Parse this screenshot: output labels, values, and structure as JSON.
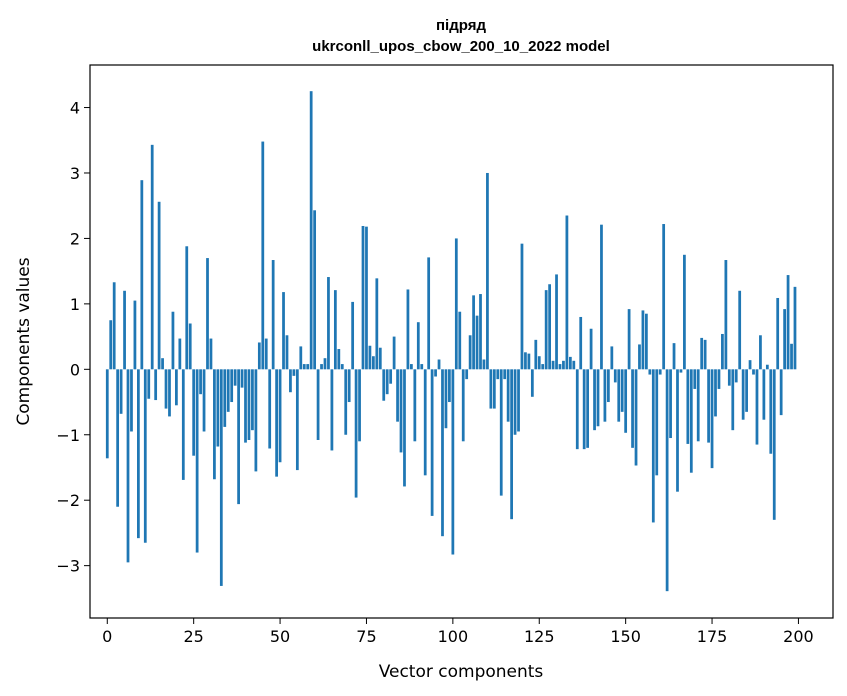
{
  "chart_data": {
    "type": "bar",
    "title": "підряд",
    "subtitle": "ukrconll_upos_cbow_200_10_2022 model",
    "xlabel": "Vector components",
    "ylabel": "Components values",
    "xlim": [
      -5,
      210
    ],
    "ylim": [
      -3.8,
      4.65
    ],
    "xticks": [
      0,
      25,
      50,
      75,
      100,
      125,
      150,
      175,
      200
    ],
    "yticks": [
      -3,
      -2,
      -1,
      0,
      1,
      2,
      3,
      4
    ],
    "bar_color": "#1f77b4",
    "grid": false,
    "legend": "none",
    "values": [
      -1.36,
      0.75,
      1.33,
      -2.1,
      -0.68,
      1.2,
      -2.95,
      -0.95,
      1.05,
      -2.58,
      2.89,
      -2.65,
      -0.45,
      3.43,
      -0.47,
      2.56,
      0.17,
      -0.6,
      -0.72,
      0.88,
      -0.55,
      0.47,
      -1.69,
      1.88,
      0.7,
      -1.32,
      -2.8,
      -0.38,
      -0.95,
      1.7,
      0.47,
      -1.68,
      -1.18,
      -3.31,
      -0.88,
      -0.65,
      -0.5,
      -0.25,
      -2.06,
      -0.28,
      -1.12,
      -1.08,
      -0.93,
      -1.56,
      0.41,
      3.48,
      0.47,
      -1.21,
      1.67,
      -1.64,
      -1.42,
      1.18,
      0.52,
      -0.35,
      -0.1,
      -1.54,
      0.35,
      0.08,
      0.08,
      4.25,
      2.43,
      -1.08,
      0.08,
      0.17,
      1.41,
      -1.24,
      1.21,
      0.31,
      0.08,
      -1.0,
      -0.5,
      1.03,
      -1.96,
      -1.1,
      2.19,
      2.18,
      0.36,
      0.2,
      1.39,
      0.33,
      -0.48,
      -0.38,
      -0.22,
      0.5,
      -0.8,
      -1.27,
      -1.79,
      1.22,
      0.08,
      -1.1,
      0.72,
      0.08,
      -1.62,
      1.71,
      -2.24,
      -0.11,
      0.15,
      -2.55,
      -0.9,
      -0.5,
      -2.83,
      2.0,
      0.88,
      -1.1,
      -0.15,
      0.52,
      1.13,
      0.82,
      1.15,
      0.15,
      3.0,
      -0.6,
      -0.6,
      -0.15,
      -1.93,
      -0.15,
      -0.8,
      -2.29,
      -1.0,
      -0.95,
      1.92,
      0.26,
      0.24,
      -0.42,
      0.45,
      0.2,
      0.08,
      1.21,
      1.3,
      0.13,
      1.45,
      0.08,
      0.13,
      2.35,
      0.19,
      0.13,
      -1.22,
      0.8,
      -1.22,
      -1.2,
      0.62,
      -0.93,
      -0.87,
      2.21,
      -0.8,
      -0.5,
      0.35,
      -0.2,
      -0.8,
      -0.65,
      -0.97,
      0.92,
      -1.2,
      -1.47,
      0.38,
      0.9,
      0.85,
      -0.08,
      -2.34,
      -1.62,
      -0.08,
      2.22,
      -3.39,
      -1.05,
      0.4,
      -1.87,
      -0.05,
      1.75,
      -1.14,
      -1.58,
      -0.3,
      -1.1,
      0.48,
      0.45,
      -1.12,
      -1.51,
      -0.72,
      -0.3,
      0.54,
      1.67,
      -0.25,
      -0.93,
      -0.2,
      1.2,
      -0.77,
      -0.65,
      0.14,
      -0.08,
      -1.15,
      0.52,
      -0.77,
      0.07,
      -1.29,
      -2.3,
      1.09,
      -0.7,
      0.92,
      1.44,
      0.39,
      1.26
    ]
  }
}
